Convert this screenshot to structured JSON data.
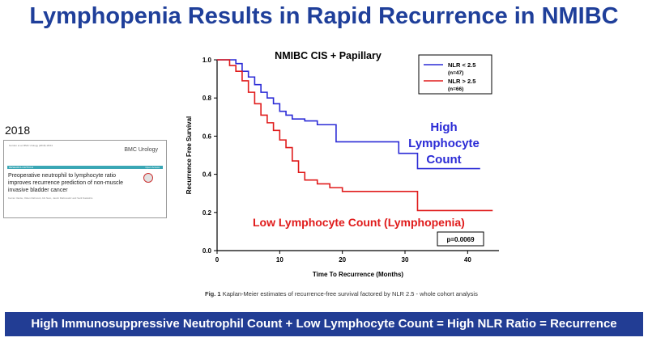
{
  "slide": {
    "title": "Lymphopenia Results in Rapid Recurrence in NMIBC",
    "year": "2018",
    "bottom_banner": "High Immunosuppressive Neutrophil Count + Low Lymphocyte Count = High NLR Ratio = Recurrence"
  },
  "paper": {
    "meta": "Gordon et al. BMC Urology (2018) 18:64",
    "journal": "BMC Urology",
    "section": "RESEARCH ARTICLE",
    "access": "Open Access",
    "title": "Preoperative neutrophil to lymphocyte ratio improves recurrence prediction of non-muscle invasive bladder cancer",
    "authors": "Kerran Vanite, Oklen Rahnovit, Abi Nam, Jacob Rabinowitz and Sarit Naskshis"
  },
  "caption": {
    "fig_label": "Fig. 1",
    "text": "Kaplan-Meier estimates of recurrence-free survival factored by NLR 2.5 - whole cohort analysis"
  },
  "chart_data": {
    "type": "line",
    "title": "NMIBC CIS + Papillary",
    "xlabel": "Time To Recurrence (Months)",
    "ylabel": "Recurrence Free Survival",
    "xlim": [
      0,
      45
    ],
    "ylim": [
      0,
      1.0
    ],
    "xticks": [
      "0",
      "10",
      "20",
      "30",
      "40"
    ],
    "yticks": [
      "0.0",
      "0.2",
      "0.4",
      "0.6",
      "0.8",
      "1.0"
    ],
    "legend_position": "top-right",
    "p_value": "p=0.0069",
    "series": [
      {
        "name": "NLR < 2.5",
        "sub": "(n=47)",
        "color": "#2b2bd6",
        "annotation": [
          "High",
          "Lymphocyte",
          "Count"
        ],
        "x": [
          0,
          3,
          4,
          5,
          6,
          7,
          8,
          9,
          10,
          11,
          12,
          14,
          16,
          19,
          29,
          32,
          42
        ],
        "y": [
          1.0,
          0.98,
          0.94,
          0.91,
          0.87,
          0.83,
          0.8,
          0.77,
          0.73,
          0.71,
          0.69,
          0.68,
          0.66,
          0.57,
          0.51,
          0.43,
          0.43
        ]
      },
      {
        "name": "NLR > 2.5",
        "sub": "(n=66)",
        "color": "#e01b1b",
        "annotation": [
          "Low Lymphocyte Count (Lymphopenia)"
        ],
        "x": [
          0,
          2,
          3,
          4,
          5,
          6,
          7,
          8,
          9,
          10,
          11,
          12,
          13,
          14,
          16,
          18,
          20,
          25,
          32,
          44
        ],
        "y": [
          1.0,
          0.97,
          0.94,
          0.89,
          0.83,
          0.77,
          0.71,
          0.67,
          0.63,
          0.58,
          0.54,
          0.47,
          0.41,
          0.37,
          0.35,
          0.33,
          0.31,
          0.31,
          0.21,
          0.21
        ]
      }
    ]
  }
}
